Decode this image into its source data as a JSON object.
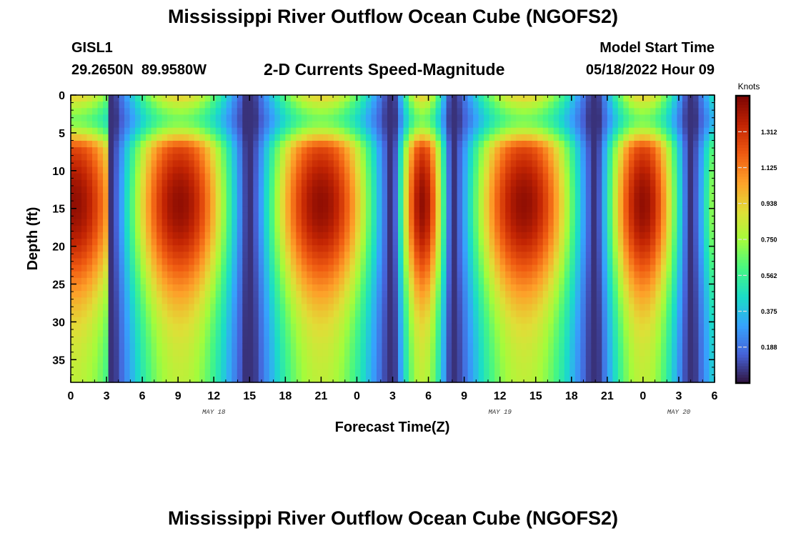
{
  "page": {
    "title": "Mississippi River Outflow Ocean Cube (NGOFS2)",
    "station_id": "GISL1",
    "station_coords": "29.2650N  89.9580W",
    "subtitle": "2-D Currents Speed-Magnitude",
    "model_start_label": "Model Start Time",
    "model_start_value": "05/18/2022 Hour 09",
    "footer_title": "Mississippi River Outflow Ocean Cube (NGOFS2)"
  },
  "chart_data": {
    "type": "heatmap",
    "title": "2-D Currents Speed-Magnitude",
    "xlabel": "Forecast Time(Z)",
    "ylabel": "Depth (ft)",
    "x_range_hours": [
      0,
      54
    ],
    "x_tick_labels": [
      "0",
      "3",
      "6",
      "9",
      "12",
      "15",
      "18",
      "21",
      "0",
      "3",
      "6",
      "9",
      "12",
      "15",
      "18",
      "21",
      "0",
      "3",
      "6"
    ],
    "x_date_labels": [
      {
        "label": "MAY 18",
        "hour": 12
      },
      {
        "label": "MAY 19",
        "hour": 36
      },
      {
        "label": "MAY 20",
        "hour": 51
      }
    ],
    "y_range": [
      0,
      38
    ],
    "y_inverted": true,
    "y_ticks": [
      0,
      5,
      10,
      15,
      20,
      25,
      30,
      35
    ],
    "colorbar": {
      "label": "Knots",
      "range": [
        0,
        1.5
      ],
      "ticks": [
        "0.188",
        "0.375",
        "0.562",
        "0.750",
        "0.938",
        "1.125",
        "1.312"
      ],
      "colormap": "turbo"
    },
    "pattern": {
      "description": "tidal current speed field; slack-water minima near these forecast hours, maxima (~1.4 kt) centered near 15 ft depth between them",
      "slack_hours": [
        3.3,
        15,
        27,
        32,
        44,
        52
      ]
    }
  }
}
